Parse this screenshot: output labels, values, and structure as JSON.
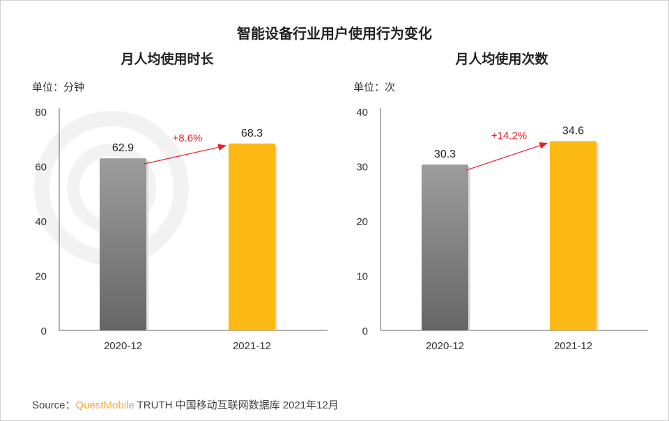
{
  "title": "智能设备行业用户使用行为变化",
  "watermark": "QUESTMOBILE",
  "source": {
    "prefix": "Source：",
    "brand": "QuestMobile",
    "text": " TRUTH 中国移动互联网数据库 2021年12月"
  },
  "chart_data": [
    {
      "type": "bar",
      "title": "月人均使用时长",
      "unit_label": "单位：分钟",
      "categories": [
        "2020-12",
        "2021-12"
      ],
      "values": [
        62.9,
        68.3
      ],
      "value_labels": [
        "62.9",
        "68.3"
      ],
      "colors": [
        "#8a8a8a",
        "#fdb913"
      ],
      "growth_label": "+8.6%",
      "ylim": [
        0,
        80
      ],
      "yticks": [
        0,
        20,
        40,
        60,
        80
      ]
    },
    {
      "type": "bar",
      "title": "月人均使用次数",
      "unit_label": "单位：次",
      "categories": [
        "2020-12",
        "2021-12"
      ],
      "values": [
        30.3,
        34.6
      ],
      "value_labels": [
        "30.3",
        "34.6"
      ],
      "colors": [
        "#8a8a8a",
        "#fdb913"
      ],
      "growth_label": "+14.2%",
      "ylim": [
        0,
        40
      ],
      "yticks": [
        0,
        10,
        20,
        30,
        40
      ]
    }
  ]
}
